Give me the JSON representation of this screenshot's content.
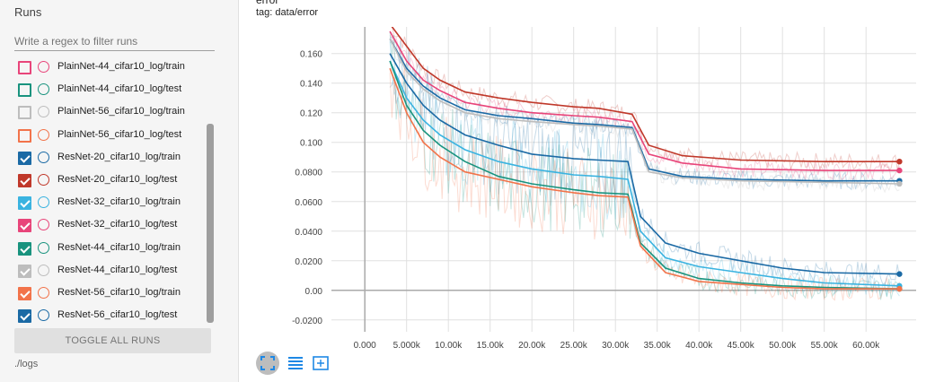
{
  "sidebar": {
    "title": "Runs",
    "filter_placeholder": "Write a regex to filter runs",
    "runs": [
      {
        "label": "PlainNet-44_cifar10_log/train",
        "checked": false,
        "color": "#e8457a"
      },
      {
        "label": "PlainNet-44_cifar10_log/test",
        "checked": false,
        "color": "#19937e"
      },
      {
        "label": "PlainNet-56_cifar10_log/train",
        "checked": false,
        "color": "#bdbdbd"
      },
      {
        "label": "PlainNet-56_cifar10_log/test",
        "checked": false,
        "color": "#f2734a"
      },
      {
        "label": "ResNet-20_cifar10_log/train",
        "checked": true,
        "color": "#1b6aa5"
      },
      {
        "label": "ResNet-20_cifar10_log/test",
        "checked": true,
        "color": "#c0382a"
      },
      {
        "label": "ResNet-32_cifar10_log/train",
        "checked": true,
        "color": "#3ab3e0"
      },
      {
        "label": "ResNet-32_cifar10_log/test",
        "checked": true,
        "color": "#e8457a"
      },
      {
        "label": "ResNet-44_cifar10_log/train",
        "checked": true,
        "color": "#19937e"
      },
      {
        "label": "ResNet-44_cifar10_log/test",
        "checked": true,
        "color": "#bdbdbd"
      },
      {
        "label": "ResNet-56_cifar10_log/train",
        "checked": true,
        "color": "#f2734a"
      },
      {
        "label": "ResNet-56_cifar10_log/test",
        "checked": true,
        "color": "#1b6aa5"
      }
    ],
    "toggle_label": "TOGGLE ALL RUNS",
    "logdir": "./logs"
  },
  "card": {
    "title": "error",
    "tag": "tag: data/error"
  },
  "chart_data": {
    "type": "line",
    "title": "error",
    "xlim": [
      -4000,
      66000
    ],
    "ylim": [
      -0.028,
      0.178
    ],
    "x_ticks": [
      0,
      5000,
      10000,
      15000,
      20000,
      25000,
      30000,
      35000,
      40000,
      45000,
      50000,
      55000,
      60000
    ],
    "x_tick_labels": [
      "0.000",
      "5.000k",
      "10.00k",
      "15.00k",
      "20.00k",
      "25.00k",
      "30.00k",
      "35.00k",
      "40.00k",
      "45.00k",
      "50.00k",
      "55.00k",
      "60.00k"
    ],
    "y_ticks": [
      -0.02,
      0,
      0.02,
      0.04,
      0.06,
      0.08,
      0.1,
      0.12,
      0.14,
      0.16
    ],
    "y_tick_labels": [
      "-0.0200",
      "0.00",
      "0.0200",
      "0.0400",
      "0.0600",
      "0.0800",
      "0.100",
      "0.120",
      "0.140",
      "0.160"
    ],
    "series": [
      {
        "name": "ResNet-20_cifar10_log/test",
        "color": "#c0382a",
        "x": [
          3000,
          5000,
          7000,
          9000,
          12000,
          16000,
          20000,
          25000,
          28000,
          32000,
          34000,
          38000,
          45000,
          55000,
          64000
        ],
        "values": [
          0.18,
          0.165,
          0.15,
          0.142,
          0.134,
          0.13,
          0.127,
          0.124,
          0.123,
          0.119,
          0.098,
          0.091,
          0.088,
          0.087,
          0.087
        ]
      },
      {
        "name": "ResNet-32_cifar10_log/test",
        "color": "#e8457a",
        "x": [
          3000,
          5000,
          7000,
          9000,
          12000,
          16000,
          20000,
          25000,
          28000,
          32000,
          34000,
          38000,
          45000,
          55000,
          64000
        ],
        "values": [
          0.175,
          0.155,
          0.142,
          0.135,
          0.127,
          0.123,
          0.12,
          0.118,
          0.117,
          0.114,
          0.092,
          0.086,
          0.082,
          0.081,
          0.081
        ]
      },
      {
        "name": "ResNet-56_cifar10_log/test",
        "color": "#1b6aa5",
        "x": [
          3000,
          5000,
          7000,
          9000,
          12000,
          16000,
          20000,
          25000,
          28000,
          32000,
          34000,
          38000,
          45000,
          55000,
          64000
        ],
        "values": [
          0.17,
          0.15,
          0.138,
          0.13,
          0.122,
          0.118,
          0.116,
          0.113,
          0.112,
          0.11,
          0.082,
          0.077,
          0.075,
          0.074,
          0.074
        ]
      },
      {
        "name": "ResNet-44_cifar10_log/test",
        "color": "#bdbdbd",
        "x": [
          3000,
          5000,
          7000,
          9000,
          12000,
          16000,
          20000,
          25000,
          28000,
          32000,
          34000,
          38000,
          45000,
          55000,
          64000
        ],
        "values": [
          0.17,
          0.148,
          0.136,
          0.128,
          0.12,
          0.116,
          0.114,
          0.112,
          0.111,
          0.109,
          0.08,
          0.076,
          0.074,
          0.073,
          0.072
        ]
      },
      {
        "name": "ResNet-20_cifar10_log/train",
        "color": "#1b6aa5",
        "x": [
          3000,
          5000,
          7000,
          9000,
          12000,
          16000,
          20000,
          25000,
          28000,
          31500,
          33000,
          36000,
          40000,
          45000,
          50000,
          55000,
          64000
        ],
        "values": [
          0.16,
          0.14,
          0.125,
          0.115,
          0.105,
          0.098,
          0.092,
          0.089,
          0.088,
          0.087,
          0.05,
          0.032,
          0.025,
          0.02,
          0.015,
          0.012,
          0.011
        ]
      },
      {
        "name": "ResNet-32_cifar10_log/train",
        "color": "#3ab3e0",
        "x": [
          3000,
          5000,
          7000,
          9000,
          12000,
          16000,
          20000,
          25000,
          28000,
          31500,
          33000,
          36000,
          40000,
          45000,
          50000,
          55000,
          64000
        ],
        "values": [
          0.155,
          0.13,
          0.115,
          0.105,
          0.095,
          0.087,
          0.082,
          0.078,
          0.077,
          0.075,
          0.04,
          0.022,
          0.016,
          0.012,
          0.008,
          0.005,
          0.003
        ]
      },
      {
        "name": "ResNet-44_cifar10_log/train",
        "color": "#19937e",
        "x": [
          3000,
          5000,
          7000,
          9000,
          12000,
          16000,
          20000,
          25000,
          28000,
          31500,
          33000,
          36000,
          40000,
          45000,
          50000,
          55000,
          64000
        ],
        "values": [
          0.155,
          0.125,
          0.108,
          0.098,
          0.087,
          0.077,
          0.072,
          0.068,
          0.066,
          0.065,
          0.032,
          0.015,
          0.008,
          0.005,
          0.003,
          0.002,
          0.001
        ]
      },
      {
        "name": "ResNet-56_cifar10_log/train",
        "color": "#f2734a",
        "x": [
          3000,
          5000,
          7000,
          9000,
          12000,
          16000,
          20000,
          25000,
          28000,
          31500,
          33000,
          36000,
          40000,
          45000,
          50000,
          55000,
          64000
        ],
        "values": [
          0.15,
          0.12,
          0.1,
          0.09,
          0.08,
          0.075,
          0.07,
          0.066,
          0.064,
          0.063,
          0.03,
          0.012,
          0.006,
          0.004,
          0.002,
          0.001,
          0.001
        ]
      }
    ]
  },
  "toolbar": {
    "expand_icon": "fit-expand-icon",
    "lines_icon": "lines-icon",
    "fit_icon": "fit-domain-icon"
  }
}
